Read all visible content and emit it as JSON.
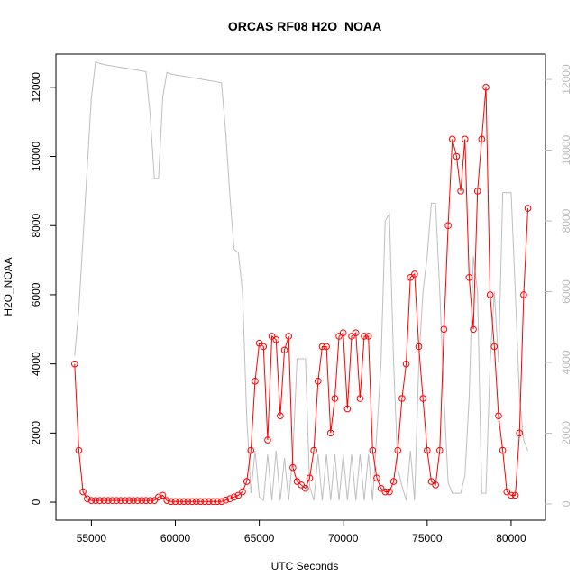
{
  "chart_data": {
    "type": "line",
    "title": "ORCAS RF08 H2O_NOAA",
    "x_label": "UTC Seconds",
    "y_label": "H2O_NOAA",
    "x": [
      54000,
      54250,
      54500,
      54750,
      55000,
      55250,
      55500,
      55750,
      56000,
      56250,
      56500,
      56750,
      57000,
      57250,
      57500,
      57750,
      58000,
      58250,
      58500,
      58750,
      59000,
      59250,
      59500,
      59750,
      60000,
      60250,
      60500,
      60750,
      61000,
      61250,
      61500,
      61750,
      62000,
      62250,
      62500,
      62750,
      63000,
      63250,
      63500,
      63750,
      64000,
      64250,
      64500,
      64750,
      65000,
      65250,
      65500,
      65750,
      66000,
      66250,
      66500,
      66750,
      67000,
      67250,
      67500,
      67750,
      68000,
      68250,
      68500,
      68750,
      69000,
      69250,
      69500,
      69750,
      70000,
      70250,
      70500,
      70750,
      71000,
      71250,
      71500,
      71750,
      72000,
      72250,
      72500,
      72750,
      73000,
      73250,
      73500,
      73750,
      74000,
      74250,
      74500,
      74750,
      75000,
      75250,
      75500,
      75750,
      76000,
      76250,
      76500,
      76750,
      77000,
      77250,
      77500,
      77750,
      78000,
      78250,
      78500,
      78750,
      79000,
      79250,
      79500,
      79750,
      80000,
      80250,
      80500,
      80750,
      81000
    ],
    "series": [
      {
        "color": "#ff0000",
        "values": [
          4000,
          1500,
          300,
          100,
          50,
          50,
          50,
          50,
          50,
          50,
          50,
          50,
          50,
          50,
          50,
          50,
          50,
          50,
          50,
          50,
          150,
          200,
          50,
          20,
          20,
          20,
          20,
          20,
          20,
          20,
          20,
          20,
          20,
          20,
          20,
          20,
          60,
          100,
          150,
          200,
          300,
          600,
          1500,
          3500,
          4600,
          4500,
          1800,
          4800,
          4700,
          2500,
          4400,
          4800,
          1000,
          600,
          500,
          400,
          700,
          1500,
          3500,
          4500,
          4500,
          2000,
          3000,
          4800,
          4900,
          2700,
          4800,
          4900,
          3000,
          4800,
          4800,
          1500,
          700,
          400,
          300,
          300,
          600,
          1500,
          3000,
          4000,
          6500,
          6600,
          4500,
          3000,
          1500,
          600,
          500,
          1500,
          5000,
          8000,
          10500,
          10000,
          9000,
          10500,
          6500,
          5000,
          9000,
          10500,
          12000,
          6000,
          4500,
          2500,
          1500,
          300,
          200,
          200,
          2000,
          6000,
          8500
        ]
      },
      {
        "color": "#bebebe",
        "axis": "y2",
        "values": [
          4200,
          5500,
          7500,
          9500,
          11500,
          12500,
          12450,
          12420,
          12400,
          12380,
          12360,
          12340,
          12320,
          12300,
          12280,
          12260,
          12240,
          12220,
          11000,
          9200,
          9200,
          11500,
          12200,
          12150,
          12130,
          12110,
          12090,
          12070,
          12050,
          12030,
          12010,
          11990,
          11970,
          11950,
          11930,
          11900,
          10500,
          8700,
          7200,
          7100,
          6000,
          2500,
          300,
          1500,
          200,
          100,
          1400,
          100,
          1500,
          100,
          1300,
          100,
          1400,
          4100,
          4100,
          4100,
          500,
          100,
          1400,
          100,
          1400,
          100,
          1400,
          100,
          1400,
          100,
          1400,
          100,
          1400,
          100,
          1400,
          100,
          2000,
          4000,
          8000,
          8200,
          4000,
          1000,
          500,
          100,
          1500,
          100,
          4000,
          6000,
          7000,
          8500,
          8500,
          6000,
          3000,
          600,
          300,
          300,
          300,
          800,
          3000,
          7000,
          6000,
          300,
          300,
          4000,
          6000,
          4000,
          8800,
          8800,
          8800,
          6000,
          3000,
          1800,
          1500
        ]
      }
    ],
    "xlim": [
      52884,
      82044
    ],
    "xticks": [
      55000,
      60000,
      65000,
      70000,
      75000,
      80000
    ],
    "ylim": [
      -520,
      12960
    ],
    "yticks": [
      0,
      2000,
      4000,
      6000,
      8000,
      10000,
      12000
    ],
    "y2lim": [
      -460,
      12715
    ],
    "y2ticks": [
      0,
      2000,
      4000,
      6000,
      8000,
      10000,
      12000
    ]
  }
}
